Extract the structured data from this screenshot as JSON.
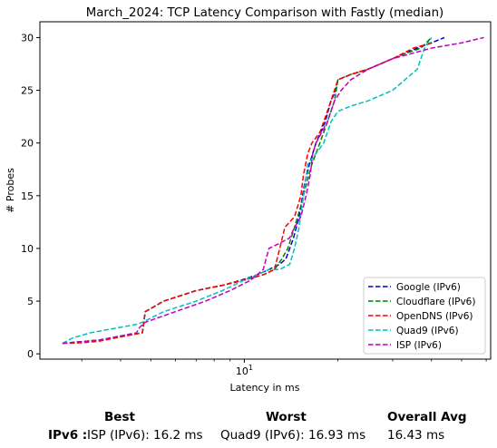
{
  "chart_data": {
    "type": "line",
    "title": "March_2024: TCP Latency Comparison with Fastly (median)",
    "xlabel": "Latency in ms",
    "ylabel": "# Probes",
    "xscale": "log",
    "xlim": [
      2.2,
      62
    ],
    "ylim": [
      -0.5,
      31.5
    ],
    "x_tick_labels": [
      "10"
    ],
    "y_ticks": [
      0,
      5,
      10,
      15,
      20,
      25,
      30
    ],
    "legend_position": "lower-right",
    "grid": false,
    "series": [
      {
        "name": "Google (IPv6)",
        "color": "#0000cc",
        "x": [
          2.6,
          3.4,
          4.7,
          4.75,
          4.8,
          5.5,
          7.0,
          8.5,
          9.8,
          11.0,
          12.0,
          13.0,
          13.6,
          14.0,
          14.4,
          15.0,
          15.6,
          16.2,
          17.0,
          18.2,
          19.0,
          19.7,
          20.0,
          22.0,
          25.0,
          30.0,
          36.0,
          40.0,
          44.0
        ],
        "y": [
          1,
          1.3,
          2,
          3,
          4,
          5,
          6,
          6.5,
          7,
          7.5,
          8,
          8.5,
          9,
          10,
          11,
          13,
          16,
          18,
          20,
          22,
          24,
          25,
          26,
          26.5,
          27,
          28,
          29,
          29.5,
          30
        ]
      },
      {
        "name": "Cloudflare (IPv6)",
        "color": "#008000",
        "x": [
          2.6,
          3.4,
          4.7,
          4.75,
          4.8,
          5.5,
          7.0,
          8.5,
          10.0,
          11.5,
          12.5,
          13.2,
          13.8,
          14.5,
          15.2,
          15.8,
          16.5,
          17.5,
          18.5,
          19.5,
          20.0,
          22.0,
          25.0,
          30.0,
          33.0,
          37.0,
          40.0
        ],
        "y": [
          1,
          1.3,
          2,
          3,
          4,
          5,
          6,
          6.5,
          7,
          7.5,
          8,
          9,
          10,
          12,
          14,
          16,
          18,
          20,
          22,
          24,
          26,
          26.5,
          27,
          28,
          28.5,
          29,
          30
        ]
      },
      {
        "name": "OpenDNS (IPv6)",
        "color": "#ff0000",
        "x": [
          2.6,
          3.0,
          3.4,
          4.7,
          4.75,
          4.8,
          5.5,
          7.0,
          8.5,
          10.0,
          11.5,
          12.5,
          13.0,
          13.5,
          14.5,
          15.2,
          15.5,
          16.0,
          16.5,
          17.5,
          18.5,
          19.5,
          20.0,
          22.0,
          25.0,
          30.0,
          35.0,
          40.0
        ],
        "y": [
          1,
          1.05,
          1.2,
          2,
          3,
          4,
          5,
          6,
          6.5,
          7,
          7.5,
          8,
          10,
          12,
          13,
          15,
          17,
          19,
          20,
          21,
          23,
          25,
          26,
          26.5,
          27,
          28,
          29,
          29.5
        ]
      },
      {
        "name": "Quad9 (IPv6)",
        "color": "#00bfbf",
        "x": [
          2.6,
          2.8,
          3.2,
          4.5,
          4.7,
          5.5,
          7.0,
          8.5,
          10.0,
          11.0,
          12.0,
          13.0,
          14.0,
          14.5,
          15.0,
          15.5,
          16.0,
          17.0,
          18.0,
          19.0,
          20.0,
          22.0,
          25.0,
          30.0,
          36.0,
          38.0,
          40.0
        ],
        "y": [
          1,
          1.5,
          2,
          2.8,
          3,
          4,
          5,
          6,
          7,
          7.5,
          8,
          8,
          8.5,
          10,
          12,
          15,
          18,
          19,
          20,
          22,
          23,
          23.5,
          24,
          25,
          27,
          29,
          30
        ]
      },
      {
        "name": "ISP (IPv6)",
        "color": "#bf00bf",
        "x": [
          2.6,
          3.4,
          4.5,
          4.6,
          4.8,
          6.0,
          7.5,
          9.0,
          10.5,
          11.5,
          12.0,
          13.0,
          14.0,
          14.5,
          15.2,
          15.8,
          16.3,
          16.6,
          17.0,
          18.5,
          19.5,
          20.5,
          22.0,
          25.0,
          30.0,
          40.0,
          50.0,
          59.0
        ],
        "y": [
          1,
          1.3,
          2,
          2.5,
          3,
          4,
          5,
          6,
          7,
          8,
          10,
          10.5,
          11,
          12,
          13,
          15,
          17,
          19,
          20,
          22,
          24,
          25,
          26,
          27,
          28,
          29,
          29.5,
          30
        ]
      }
    ]
  },
  "summary": {
    "headers": {
      "best": "Best",
      "worst": "Worst",
      "avg": "Overall Avg"
    },
    "row_label": "IPv6 :",
    "best": "ISP (IPv6): 16.2 ms",
    "worst": "Quad9 (IPv6): 16.93 ms",
    "avg": "16.43 ms"
  }
}
